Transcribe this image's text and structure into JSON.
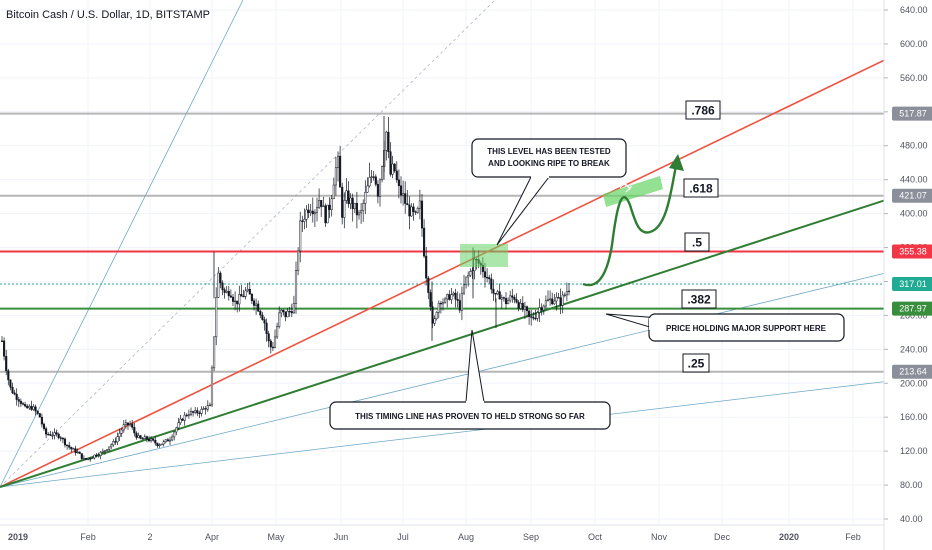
{
  "chart_data": {
    "type": "line",
    "title": "Bitcoin Cash / U.S. Dollar, 1D, BITSTAMP",
    "x_ticks": [
      "2019",
      "Feb",
      "2",
      "Apr",
      "May",
      "Jun",
      "Jul",
      "Aug",
      "Sep",
      "Oct",
      "Nov",
      "Dec",
      "2020",
      "Feb"
    ],
    "y_ticks": [
      "640.00",
      "600.00",
      "560.00",
      "520.00",
      "480.00",
      "440.00",
      "400.00",
      "360.00",
      "320.00",
      "280.00",
      "240.00",
      "200.00",
      "160.00",
      "120.00",
      "80.00",
      "40.00"
    ],
    "ylim": [
      40,
      640
    ],
    "price_path": [
      [
        2,
        250
      ],
      [
        7,
        212
      ],
      [
        10,
        195
      ],
      [
        15,
        186
      ],
      [
        20,
        180
      ],
      [
        25,
        170
      ],
      [
        32,
        172
      ],
      [
        40,
        160
      ],
      [
        45,
        140
      ],
      [
        52,
        140
      ],
      [
        60,
        138
      ],
      [
        66,
        128
      ],
      [
        72,
        122
      ],
      [
        78,
        118
      ],
      [
        84,
        110
      ],
      [
        90,
        112
      ],
      [
        96,
        116
      ],
      [
        102,
        118
      ],
      [
        108,
        125
      ],
      [
        114,
        130
      ],
      [
        118,
        138
      ],
      [
        124,
        150
      ],
      [
        130,
        152
      ],
      [
        135,
        140
      ],
      [
        140,
        134
      ],
      [
        146,
        135
      ],
      [
        152,
        132
      ],
      [
        158,
        128
      ],
      [
        164,
        130
      ],
      [
        170,
        135
      ],
      [
        175,
        145
      ],
      [
        182,
        158
      ],
      [
        188,
        165
      ],
      [
        195,
        165
      ],
      [
        202,
        168
      ],
      [
        206,
        172
      ],
      [
        210,
        172
      ],
      [
        212,
        215
      ],
      [
        214,
        255
      ],
      [
        216,
        300
      ],
      [
        218,
        330
      ],
      [
        220,
        320
      ],
      [
        225,
        305
      ],
      [
        230,
        310
      ],
      [
        235,
        295
      ],
      [
        240,
        300
      ],
      [
        246,
        308
      ],
      [
        252,
        300
      ],
      [
        258,
        290
      ],
      [
        264,
        275
      ],
      [
        268,
        250
      ],
      [
        272,
        240
      ],
      [
        276,
        260
      ],
      [
        280,
        285
      ],
      [
        285,
        280
      ],
      [
        290,
        285
      ],
      [
        294,
        292
      ],
      [
        297,
        345
      ],
      [
        300,
        385
      ],
      [
        305,
        400
      ],
      [
        310,
        410
      ],
      [
        315,
        405
      ],
      [
        320,
        420
      ],
      [
        325,
        395
      ],
      [
        330,
        410
      ],
      [
        335,
        450
      ],
      [
        338,
        460
      ],
      [
        342,
        400
      ],
      [
        346,
        420
      ],
      [
        350,
        415
      ],
      [
        355,
        405
      ],
      [
        360,
        395
      ],
      [
        365,
        420
      ],
      [
        370,
        440
      ],
      [
        374,
        450
      ],
      [
        378,
        425
      ],
      [
        382,
        460
      ],
      [
        386,
        500
      ],
      [
        390,
        445
      ],
      [
        394,
        455
      ],
      [
        398,
        430
      ],
      [
        403,
        420
      ],
      [
        408,
        405
      ],
      [
        412,
        400
      ],
      [
        416,
        395
      ],
      [
        420,
        410
      ],
      [
        423,
        370
      ],
      [
        426,
        330
      ],
      [
        430,
        300
      ],
      [
        433,
        260
      ],
      [
        436,
        285
      ],
      [
        440,
        300
      ],
      [
        445,
        295
      ],
      [
        450,
        305
      ],
      [
        455,
        300
      ],
      [
        460,
        290
      ],
      [
        465,
        320
      ],
      [
        470,
        330
      ],
      [
        475,
        345
      ],
      [
        480,
        340
      ],
      [
        485,
        330
      ],
      [
        490,
        320
      ],
      [
        495,
        300
      ],
      [
        500,
        305
      ],
      [
        505,
        295
      ],
      [
        510,
        300
      ],
      [
        515,
        302
      ],
      [
        520,
        290
      ],
      [
        525,
        285
      ],
      [
        530,
        275
      ],
      [
        535,
        280
      ],
      [
        540,
        290
      ],
      [
        545,
        295
      ],
      [
        550,
        298
      ],
      [
        555,
        300
      ],
      [
        560,
        295
      ],
      [
        565,
        305
      ],
      [
        570,
        315
      ]
    ],
    "levels": [
      {
        "label": ".786",
        "value": "517.87",
        "price": 517.87,
        "color": "#9e9e9e"
      },
      {
        "label": ".618",
        "value": "421.07",
        "price": 421.07,
        "color": "#9e9e9e"
      },
      {
        "label": ".5",
        "value": "355.38",
        "price": 355.38,
        "color": "#f23645"
      },
      {
        "label": "",
        "value": "317.01",
        "price": 317.01,
        "color": "#22ab94"
      },
      {
        "label": ".382",
        "value": "287.97",
        "price": 287.97,
        "color": "#388e3c"
      },
      {
        "label": ".25",
        "value": "213.64",
        "price": 213.64,
        "color": "#9e9e9e"
      }
    ],
    "annotations": [
      "THIS LEVEL HAS BEEN TESTED",
      "AND LOOKING RIPE TO BREAK",
      "PRICE HOLDING MAJOR SUPPORT HERE",
      "THIS TIMING LINE HAS PROVEN TO HELD STRONG SO FAR"
    ],
    "colors": {
      "resistance_trend": "#f0523f",
      "support_trend": "#2e7d32",
      "fan_line": "#6fa8c7",
      "candle": "#131722",
      "highlight": "#66d466",
      "arrow": "#2e7d32"
    },
    "grid": true
  }
}
